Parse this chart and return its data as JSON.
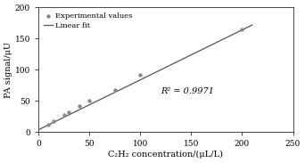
{
  "x_data": [
    10,
    15,
    25,
    30,
    40,
    50,
    75,
    100,
    200
  ],
  "y_data": [
    12,
    17,
    28,
    32,
    42,
    50,
    67,
    92,
    165
  ],
  "fit_slope": 0.802,
  "fit_intercept": 3.5,
  "r_squared": "R² = 0.9971",
  "r2_x": 120,
  "r2_y": 62,
  "xlabel": "C₂H₂ concentration/(μL/L)",
  "ylabel": "PA signal/μU",
  "xlim": [
    0,
    250
  ],
  "ylim": [
    0,
    200
  ],
  "xticks": [
    0,
    50,
    100,
    150,
    200,
    250
  ],
  "yticks": [
    0,
    50,
    100,
    150,
    200
  ],
  "legend_dot_label": "Experimental values",
  "legend_line_label": "Linear fit",
  "dot_color": "#888888",
  "line_color": "#555555",
  "plot_bg_color": "#ffffff",
  "fig_bg_color": "#ffffff",
  "font_size": 6.5,
  "label_font_size": 7.0,
  "tick_font_size": 6.5
}
